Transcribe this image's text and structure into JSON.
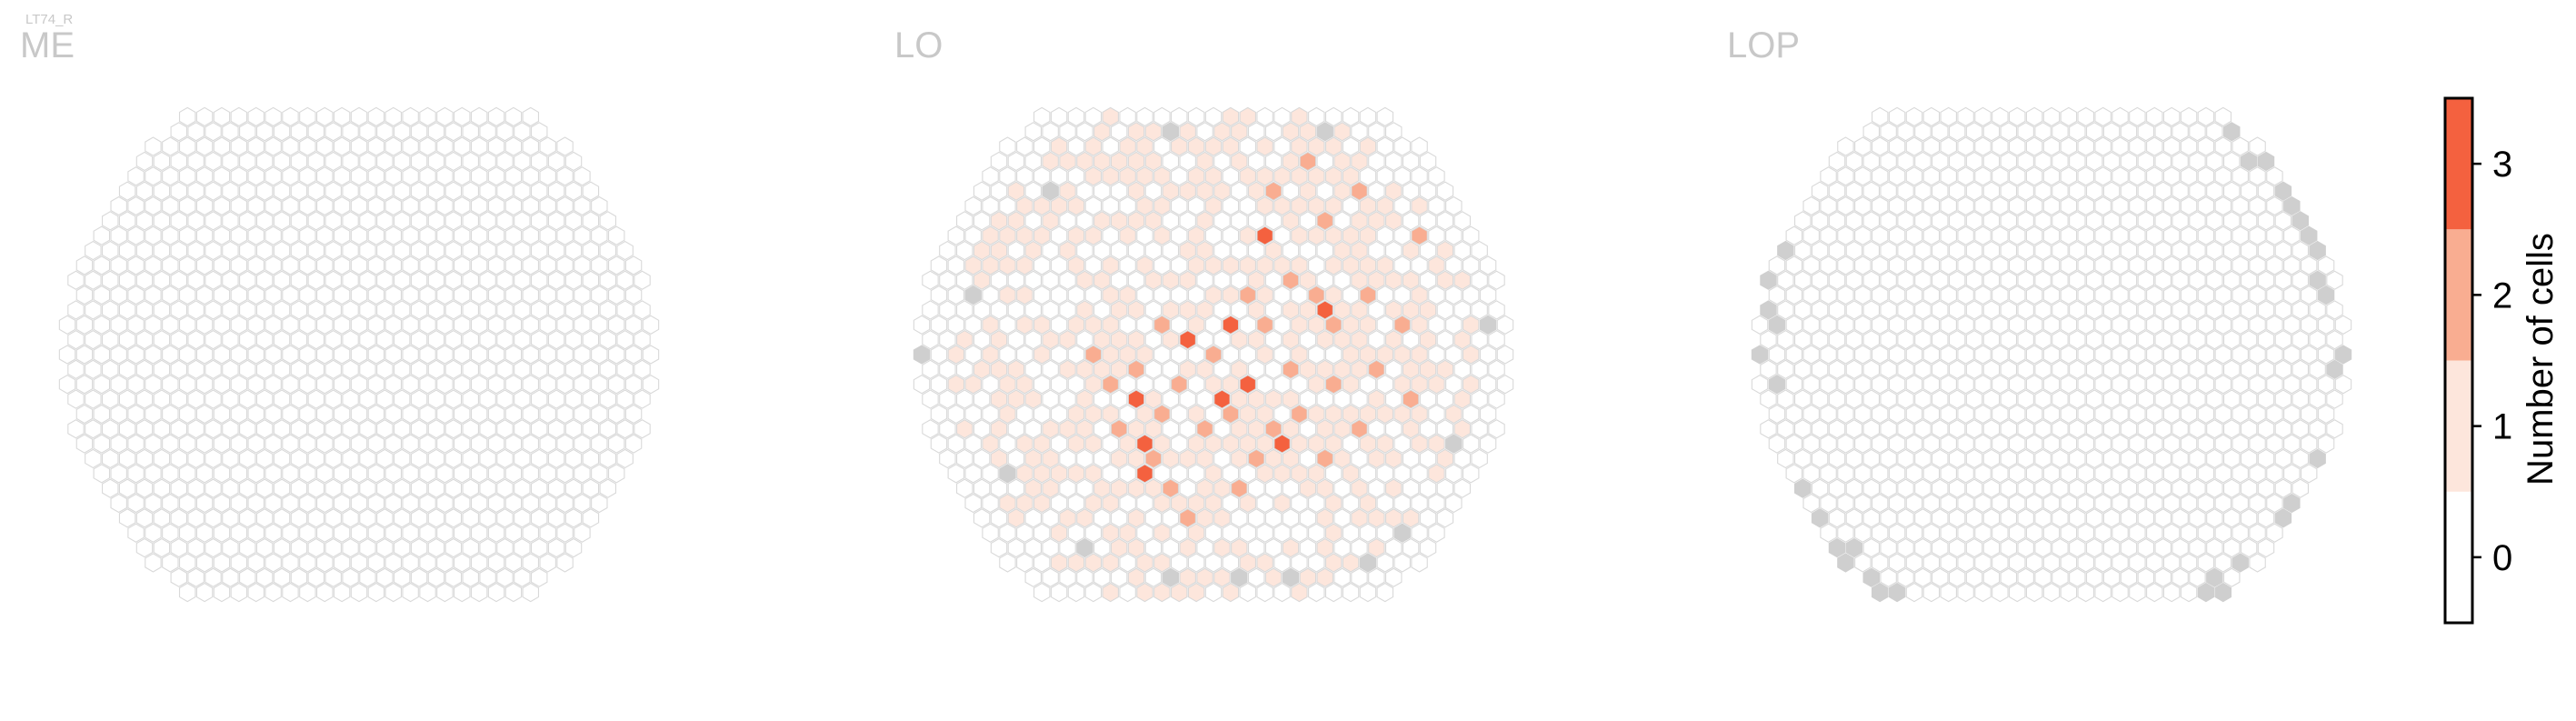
{
  "figure_tag": "LT74_R",
  "chart_data": [
    {
      "type": "heatmap",
      "layout": "hexagonal",
      "title": "ME",
      "max_value": 0,
      "high_cells": [],
      "mid_cells": [],
      "low_cells": [],
      "gray_cells": []
    },
    {
      "type": "heatmap",
      "layout": "hexagonal",
      "title": "LO",
      "max_value": 3,
      "high_cells": [
        [
          -4,
          6
        ],
        [
          3,
          -8
        ],
        [
          -2,
          -1
        ],
        [
          1,
          -2
        ],
        [
          -5,
          3
        ],
        [
          2,
          2
        ],
        [
          0,
          3
        ],
        [
          4,
          6
        ],
        [
          -4,
          8
        ],
        [
          6,
          -3
        ]
      ],
      "mid_cells": [
        [
          5,
          -13
        ],
        [
          3,
          -11
        ],
        [
          8,
          -11
        ],
        [
          6,
          -9
        ],
        [
          12,
          -8
        ],
        [
          4,
          -5
        ],
        [
          2,
          -4
        ],
        [
          6,
          -4
        ],
        [
          9,
          -4
        ],
        [
          -3,
          -2
        ],
        [
          3,
          -2
        ],
        [
          7,
          -2
        ],
        [
          11,
          -2
        ],
        [
          -7,
          0
        ],
        [
          0,
          0
        ],
        [
          -5,
          1
        ],
        [
          4,
          1
        ],
        [
          9,
          1
        ],
        [
          -6,
          2
        ],
        [
          -2,
          2
        ],
        [
          7,
          2
        ],
        [
          11,
          3
        ],
        [
          -3,
          4
        ],
        [
          1,
          4
        ],
        [
          5,
          4
        ],
        [
          -6,
          5
        ],
        [
          -1,
          5
        ],
        [
          3,
          5
        ],
        [
          8,
          5
        ],
        [
          -4,
          7
        ],
        [
          2,
          7
        ],
        [
          6,
          7
        ],
        [
          -3,
          9
        ],
        [
          1,
          9
        ],
        [
          -2,
          11
        ]
      ],
      "low_density": 0.55,
      "gray_cells": [
        [
          -3,
          -15
        ],
        [
          6,
          -15
        ],
        [
          -10,
          -11
        ],
        [
          -14,
          -4
        ],
        [
          -17,
          0
        ],
        [
          -12,
          8
        ],
        [
          -8,
          13
        ],
        [
          -3,
          15
        ],
        [
          1,
          15
        ],
        [
          4,
          15
        ],
        [
          9,
          14
        ],
        [
          11,
          12
        ],
        [
          14,
          6
        ],
        [
          16,
          -2
        ]
      ]
    },
    {
      "type": "heatmap",
      "layout": "hexagonal",
      "title": "LOP",
      "max_value": 0,
      "high_cells": [],
      "mid_cells": [],
      "low_cells": [],
      "gray_ring_fraction": 0.45
    }
  ],
  "colorbar": {
    "label": "Number of cells",
    "ticks": [
      "0",
      "1",
      "2",
      "3"
    ],
    "colors": [
      "#ffffff",
      "#fde6dc",
      "#f9ad91",
      "#f4613f"
    ]
  },
  "colors": {
    "hex_outline": "#d9d9d9",
    "gray_cell": "#cfcfcf",
    "label": "#c8c8c8",
    "low": "#fde6dc",
    "mid": "#f9ad91",
    "high": "#f4613f"
  }
}
